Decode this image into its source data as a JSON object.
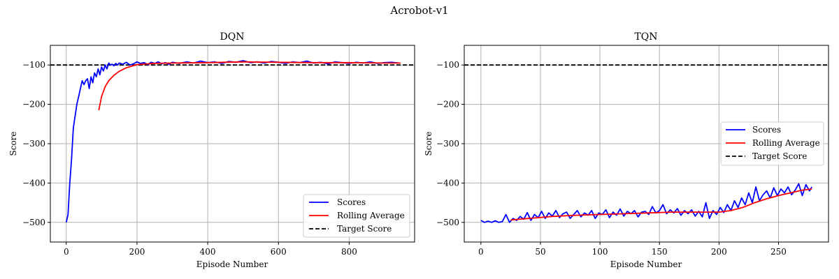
{
  "figure": {
    "suptitle": "Acrobot-v1"
  },
  "colors": {
    "scores": "#0000ff",
    "rolling": "#ff0000",
    "target": "#000000",
    "grid": "#b0b0b0"
  },
  "chart_data": [
    {
      "type": "line",
      "title": "DQN",
      "xlabel": "Episode Number",
      "ylabel": "Score",
      "xlim": [
        -45,
        985
      ],
      "ylim": [
        -550,
        -50
      ],
      "xticks": [
        0,
        200,
        400,
        600,
        800
      ],
      "yticks": [
        -500,
        -400,
        -300,
        -200,
        -100
      ],
      "xtick_labels": [
        "0",
        "200",
        "400",
        "600",
        "800"
      ],
      "ytick_labels": [
        "−500",
        "−400",
        "−300",
        "−200",
        "−100"
      ],
      "grid": true,
      "legend_position": "lower-right",
      "target_score": -100,
      "series": [
        {
          "name": "Scores",
          "color": "#0000ff",
          "x": [
            0,
            5,
            10,
            15,
            20,
            25,
            30,
            35,
            40,
            45,
            50,
            55,
            60,
            65,
            70,
            75,
            80,
            85,
            90,
            95,
            100,
            105,
            110,
            115,
            120,
            125,
            130,
            135,
            140,
            145,
            150,
            160,
            170,
            180,
            190,
            200,
            210,
            220,
            230,
            240,
            250,
            260,
            270,
            280,
            290,
            300,
            320,
            340,
            360,
            380,
            400,
            420,
            440,
            460,
            480,
            500,
            520,
            540,
            560,
            580,
            600,
            620,
            640,
            660,
            680,
            700,
            720,
            740,
            760,
            780,
            800,
            820,
            840,
            860,
            880,
            900,
            920,
            940
          ],
          "y": [
            -500,
            -480,
            -400,
            -340,
            -260,
            -230,
            -200,
            -180,
            -160,
            -140,
            -150,
            -140,
            -135,
            -160,
            -130,
            -145,
            -120,
            -130,
            -110,
            -125,
            -105,
            -115,
            -100,
            -110,
            -95,
            -100,
            -98,
            -102,
            -96,
            -100,
            -95,
            -98,
            -93,
            -100,
            -97,
            -92,
            -96,
            -94,
            -99,
            -93,
            -96,
            -92,
            -97,
            -94,
            -98,
            -93,
            -96,
            -92,
            -95,
            -90,
            -94,
            -92,
            -96,
            -91,
            -93,
            -89,
            -94,
            -92,
            -95,
            -91,
            -93,
            -96,
            -92,
            -94,
            -90,
            -95,
            -93,
            -97,
            -92,
            -94,
            -96,
            -93,
            -95,
            -92,
            -96,
            -94,
            -93,
            -95
          ]
        },
        {
          "name": "Rolling Average",
          "color": "#ff0000",
          "x": [
            92,
            100,
            110,
            120,
            135,
            150,
            170,
            200,
            250,
            300,
            400,
            500,
            600,
            700,
            800,
            900,
            945
          ],
          "y": [
            -215,
            -180,
            -155,
            -140,
            -126,
            -116,
            -107,
            -99,
            -96,
            -95,
            -94,
            -92,
            -93,
            -94,
            -94,
            -95,
            -95
          ]
        }
      ]
    },
    {
      "type": "line",
      "title": "TQN",
      "xlabel": "Episode Number",
      "ylabel": "Score",
      "xlim": [
        -14,
        292
      ],
      "ylim": [
        -550,
        -50
      ],
      "xticks": [
        0,
        50,
        100,
        150,
        200,
        250
      ],
      "yticks": [
        -500,
        -400,
        -300,
        -200,
        -100
      ],
      "xtick_labels": [
        "0",
        "50",
        "100",
        "150",
        "200",
        "250"
      ],
      "ytick_labels": [
        "−500",
        "−400",
        "−300",
        "−200",
        "−100"
      ],
      "grid": true,
      "legend_position": "center-right",
      "target_score": -100,
      "series": [
        {
          "name": "Scores",
          "color": "#0000ff",
          "x": [
            0,
            3,
            6,
            9,
            12,
            15,
            18,
            21,
            24,
            27,
            30,
            33,
            36,
            39,
            42,
            45,
            48,
            51,
            54,
            57,
            60,
            63,
            66,
            69,
            72,
            75,
            78,
            81,
            84,
            87,
            90,
            93,
            96,
            99,
            102,
            105,
            108,
            111,
            114,
            117,
            120,
            123,
            126,
            129,
            132,
            135,
            138,
            141,
            144,
            147,
            150,
            153,
            156,
            159,
            162,
            165,
            168,
            171,
            174,
            177,
            180,
            183,
            186,
            189,
            192,
            195,
            198,
            201,
            204,
            207,
            210,
            213,
            216,
            219,
            222,
            225,
            228,
            231,
            234,
            237,
            240,
            243,
            246,
            249,
            252,
            255,
            258,
            261,
            264,
            267,
            270,
            273,
            276,
            278
          ],
          "y": [
            -495,
            -500,
            -497,
            -500,
            -496,
            -500,
            -498,
            -480,
            -500,
            -490,
            -495,
            -485,
            -492,
            -475,
            -495,
            -480,
            -488,
            -472,
            -490,
            -476,
            -484,
            -470,
            -488,
            -478,
            -474,
            -490,
            -480,
            -470,
            -486,
            -476,
            -482,
            -470,
            -490,
            -476,
            -480,
            -468,
            -488,
            -474,
            -482,
            -466,
            -484,
            -472,
            -478,
            -470,
            -486,
            -474,
            -472,
            -480,
            -460,
            -476,
            -470,
            -455,
            -478,
            -468,
            -476,
            -465,
            -482,
            -470,
            -478,
            -468,
            -484,
            -472,
            -486,
            -450,
            -490,
            -470,
            -480,
            -462,
            -475,
            -455,
            -470,
            -445,
            -462,
            -438,
            -455,
            -425,
            -450,
            -410,
            -445,
            -430,
            -420,
            -438,
            -412,
            -432,
            -415,
            -425,
            -410,
            -430,
            -418,
            -402,
            -432,
            -404,
            -420,
            -410
          ]
        },
        {
          "name": "Rolling Average",
          "color": "#ff0000",
          "x": [
            25,
            40,
            60,
            80,
            100,
            120,
            140,
            160,
            180,
            200,
            210,
            220,
            230,
            240,
            250,
            260,
            270,
            278
          ],
          "y": [
            -494,
            -490,
            -485,
            -482,
            -480,
            -478,
            -476,
            -474,
            -474,
            -474,
            -470,
            -462,
            -450,
            -440,
            -432,
            -425,
            -418,
            -415
          ]
        }
      ]
    }
  ],
  "legend": {
    "scores": "Scores",
    "rolling": "Rolling Average",
    "target": "Target Score"
  }
}
